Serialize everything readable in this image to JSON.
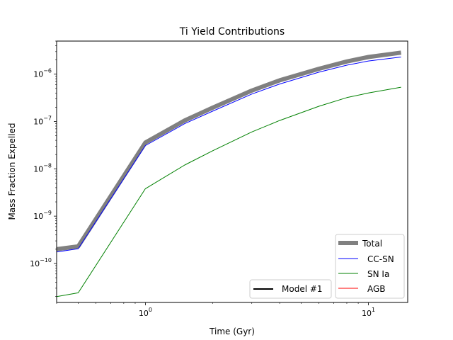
{
  "chart_data": {
    "type": "line",
    "title": "Ti Yield Contributions",
    "xlabel": "Time (Gyr)",
    "ylabel": "Mass Fraction Expelled",
    "xscale": "log",
    "yscale": "log",
    "xlim": [
      0.4,
      15
    ],
    "ylim": [
      1.5e-11,
      5e-06
    ],
    "x_ticks": [
      {
        "base": "10",
        "exp": "0",
        "value": 1
      },
      {
        "base": "10",
        "exp": "1",
        "value": 10
      }
    ],
    "y_ticks": [
      {
        "base": "10",
        "exp": "−10",
        "value": 1e-10
      },
      {
        "base": "10",
        "exp": "−9",
        "value": 1e-09
      },
      {
        "base": "10",
        "exp": "−8",
        "value": 1e-08
      },
      {
        "base": "10",
        "exp": "−7",
        "value": 1e-07
      },
      {
        "base": "10",
        "exp": "−6",
        "value": 1e-06
      }
    ],
    "grid": false,
    "series": [
      {
        "name": "Total",
        "color": "#808080",
        "width": 6,
        "x": [
          0.4,
          0.5,
          1.0,
          1.5,
          2.0,
          3.0,
          4.0,
          6.0,
          8.0,
          10.0,
          14.0
        ],
        "y": [
          2e-10,
          2.3e-10,
          3.6e-08,
          1.05e-07,
          1.95e-07,
          4.5e-07,
          7.4e-07,
          1.3e-06,
          1.85e-06,
          2.3e-06,
          2.85e-06
        ]
      },
      {
        "name": "CC-SN",
        "color": "#0000ff",
        "width": 1,
        "x": [
          0.4,
          0.5,
          1.0,
          1.5,
          2.0,
          3.0,
          4.0,
          6.0,
          8.0,
          10.0,
          14.0
        ],
        "y": [
          1.75e-10,
          2.05e-10,
          3.1e-08,
          9e-08,
          1.65e-07,
          3.8e-07,
          6.2e-07,
          1.1e-06,
          1.55e-06,
          1.9e-06,
          2.3e-06
        ]
      },
      {
        "name": "SN Ia",
        "color": "#008000",
        "width": 1,
        "x": [
          0.4,
          0.5,
          1.0,
          1.5,
          2.0,
          3.0,
          4.0,
          6.0,
          8.0,
          10.0,
          14.0
        ],
        "y": [
          2e-11,
          2.4e-11,
          3.8e-09,
          1.2e-08,
          2.4e-08,
          6e-08,
          1.05e-07,
          2.1e-07,
          3.2e-07,
          4e-07,
          5.3e-07
        ]
      },
      {
        "name": "AGB",
        "color": "#ff0000",
        "width": 1,
        "x": [],
        "y": []
      }
    ],
    "legend": {
      "placement": "lower-right",
      "entries": [
        "Total",
        "CC-SN",
        "SN Ia",
        "AGB"
      ]
    },
    "legend2": {
      "placement": "lower-center",
      "color": "#000000",
      "label": "Model #1"
    }
  }
}
